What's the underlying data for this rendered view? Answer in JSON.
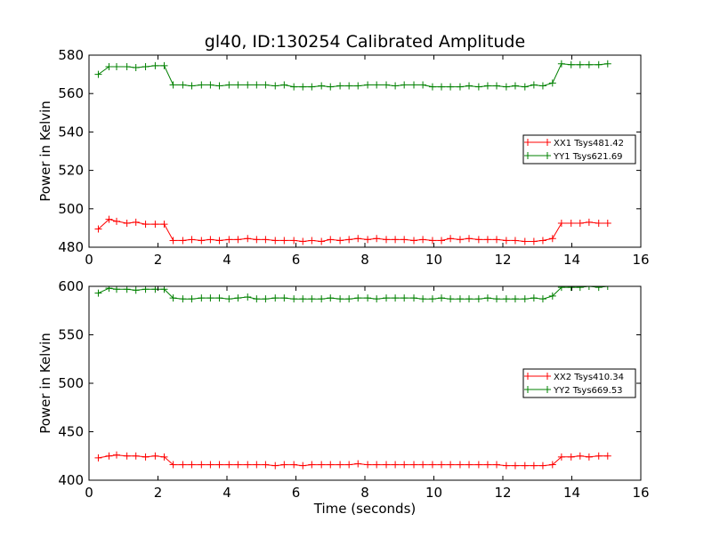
{
  "figure": {
    "title": "gl40, ID:130254 Calibrated Amplitude"
  },
  "chart_data": [
    {
      "type": "line",
      "title": "gl40, ID:130254 Calibrated Amplitude",
      "xlabel": "",
      "ylabel": "Power in Kelvin",
      "xlim": [
        0,
        16
      ],
      "ylim": [
        480,
        580
      ],
      "xticks": [
        0,
        2,
        4,
        6,
        8,
        10,
        12,
        14,
        16
      ],
      "yticks": [
        480,
        500,
        520,
        540,
        560,
        580
      ],
      "grid": false,
      "legend_position": "right",
      "x": [
        0.27,
        0.58,
        0.8,
        1.1,
        1.36,
        1.64,
        1.92,
        2.18,
        2.44,
        2.72,
        2.98,
        3.26,
        3.52,
        3.78,
        4.06,
        4.32,
        4.6,
        4.86,
        5.12,
        5.4,
        5.66,
        5.94,
        6.2,
        6.46,
        6.74,
        7.0,
        7.28,
        7.54,
        7.8,
        8.08,
        8.34,
        8.62,
        8.88,
        9.14,
        9.42,
        9.68,
        9.96,
        10.22,
        10.48,
        10.76,
        11.02,
        11.3,
        11.56,
        11.82,
        12.1,
        12.36,
        12.64,
        12.9,
        13.16,
        13.44,
        13.7,
        13.98,
        14.24,
        14.5,
        14.78,
        15.04
      ],
      "series": [
        {
          "name": "XX1 Tsys481.42",
          "color": "#ff0000",
          "values": [
            489.5,
            494.5,
            493.5,
            492.5,
            493.0,
            492.0,
            492.0,
            492.0,
            483.5,
            483.5,
            484.0,
            483.5,
            484.0,
            483.5,
            484.0,
            484.0,
            484.5,
            484.0,
            484.0,
            483.5,
            483.5,
            483.5,
            483.0,
            483.5,
            483.0,
            484.0,
            483.5,
            484.0,
            484.5,
            484.0,
            484.5,
            484.0,
            484.0,
            484.0,
            483.5,
            484.0,
            483.5,
            483.5,
            484.5,
            484.0,
            484.5,
            484.0,
            484.0,
            484.0,
            483.5,
            483.5,
            483.0,
            483.0,
            483.5,
            484.5,
            492.5,
            492.5,
            492.5,
            493.0,
            492.5,
            492.5
          ]
        },
        {
          "name": "YY1 Tsys621.69",
          "color": "#008000",
          "values": [
            570.0,
            574.0,
            574.0,
            574.0,
            573.5,
            574.0,
            574.5,
            574.5,
            564.5,
            564.5,
            564.0,
            564.5,
            564.5,
            564.0,
            564.5,
            564.5,
            564.5,
            564.5,
            564.5,
            564.0,
            564.5,
            563.5,
            563.5,
            563.5,
            564.0,
            563.5,
            564.0,
            564.0,
            564.0,
            564.5,
            564.5,
            564.5,
            564.0,
            564.5,
            564.5,
            564.5,
            563.5,
            563.5,
            563.5,
            563.5,
            564.0,
            563.5,
            564.0,
            564.0,
            563.5,
            564.0,
            563.5,
            564.5,
            564.0,
            565.5,
            575.5,
            575.0,
            575.0,
            575.0,
            575.0,
            575.5
          ]
        }
      ]
    },
    {
      "type": "line",
      "title": "",
      "xlabel": "Time (seconds)",
      "ylabel": "Power in Kelvin",
      "xlim": [
        0,
        16
      ],
      "ylim": [
        400,
        600
      ],
      "xticks": [
        0,
        2,
        4,
        6,
        8,
        10,
        12,
        14,
        16
      ],
      "yticks": [
        400,
        450,
        500,
        550,
        600
      ],
      "grid": false,
      "legend_position": "right",
      "x": [
        0.27,
        0.58,
        0.8,
        1.1,
        1.36,
        1.64,
        1.92,
        2.18,
        2.44,
        2.72,
        2.98,
        3.26,
        3.52,
        3.78,
        4.06,
        4.32,
        4.6,
        4.86,
        5.12,
        5.4,
        5.66,
        5.94,
        6.2,
        6.46,
        6.74,
        7.0,
        7.28,
        7.54,
        7.8,
        8.08,
        8.34,
        8.62,
        8.88,
        9.14,
        9.42,
        9.68,
        9.96,
        10.22,
        10.48,
        10.76,
        11.02,
        11.3,
        11.56,
        11.82,
        12.1,
        12.36,
        12.64,
        12.9,
        13.16,
        13.44,
        13.7,
        13.98,
        14.24,
        14.5,
        14.78,
        15.04
      ],
      "series": [
        {
          "name": "XX2 Tsys410.34",
          "color": "#ff0000",
          "values": [
            423,
            425,
            426,
            425,
            425,
            424,
            425,
            424,
            416,
            416,
            416,
            416,
            416,
            416,
            416,
            416,
            416,
            416,
            416,
            415,
            416,
            416,
            415,
            416,
            416,
            416,
            416,
            416,
            417,
            416,
            416,
            416,
            416,
            416,
            416,
            416,
            416,
            416,
            416,
            416,
            416,
            416,
            416,
            416,
            415,
            415,
            415,
            415,
            415,
            416,
            424,
            424,
            425,
            424,
            425,
            425
          ]
        },
        {
          "name": "YY2 Tsys669.53",
          "color": "#008000",
          "values": [
            593,
            598,
            597,
            597,
            596,
            597,
            597,
            597,
            588,
            587,
            587,
            588,
            588,
            588,
            587,
            588,
            589,
            587,
            587,
            588,
            588,
            587,
            587,
            587,
            587,
            588,
            587,
            587,
            588,
            588,
            587,
            588,
            588,
            588,
            588,
            587,
            587,
            588,
            587,
            587,
            587,
            587,
            588,
            587,
            587,
            587,
            587,
            588,
            587,
            590,
            599,
            599,
            599,
            600,
            599,
            600
          ]
        }
      ]
    }
  ]
}
